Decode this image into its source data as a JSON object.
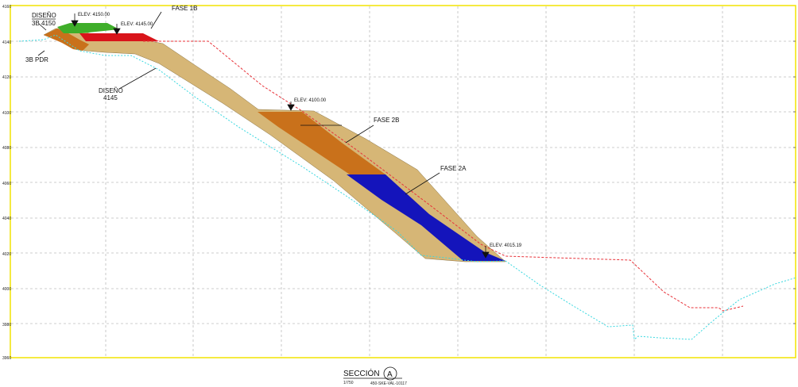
{
  "section": {
    "title": "SECCIÓN",
    "marker": "A",
    "scale": "1/750",
    "drawing_code": "450-SKE-VAL-10117"
  },
  "axis": {
    "y_ticks": [
      "4160",
      "4140",
      "4120",
      "4100",
      "4080",
      "4060",
      "4040",
      "4020",
      "4000",
      "3980",
      "3960"
    ]
  },
  "labels": {
    "diseno_3b": "DISEÑO",
    "diseno_3b_sub": "3B 4150",
    "pdr_3b": "3B PDR",
    "diseno_4145": "DISEÑO",
    "diseno_4145_sub": "4145",
    "fase_1b": "FASE 1B",
    "fase_2b": "FASE 2B",
    "fase_2a": "FASE 2A"
  },
  "elevations": {
    "e4150": "ELEV: 4150.00",
    "e4145": "ELEV: 4145.00",
    "e4100": "ELEV: 4100.00",
    "e4015": "ELEV: 4015.19"
  },
  "colors": {
    "frame": "#f2e400",
    "grid": "#bcbcbc",
    "tan": "#d6b676",
    "orange": "#c9711b",
    "blue": "#1414bb",
    "red_fill": "#d9141a",
    "green_fill": "#3fae2a",
    "red_line": "#e8333a",
    "cyan_line": "#39d8e0"
  }
}
